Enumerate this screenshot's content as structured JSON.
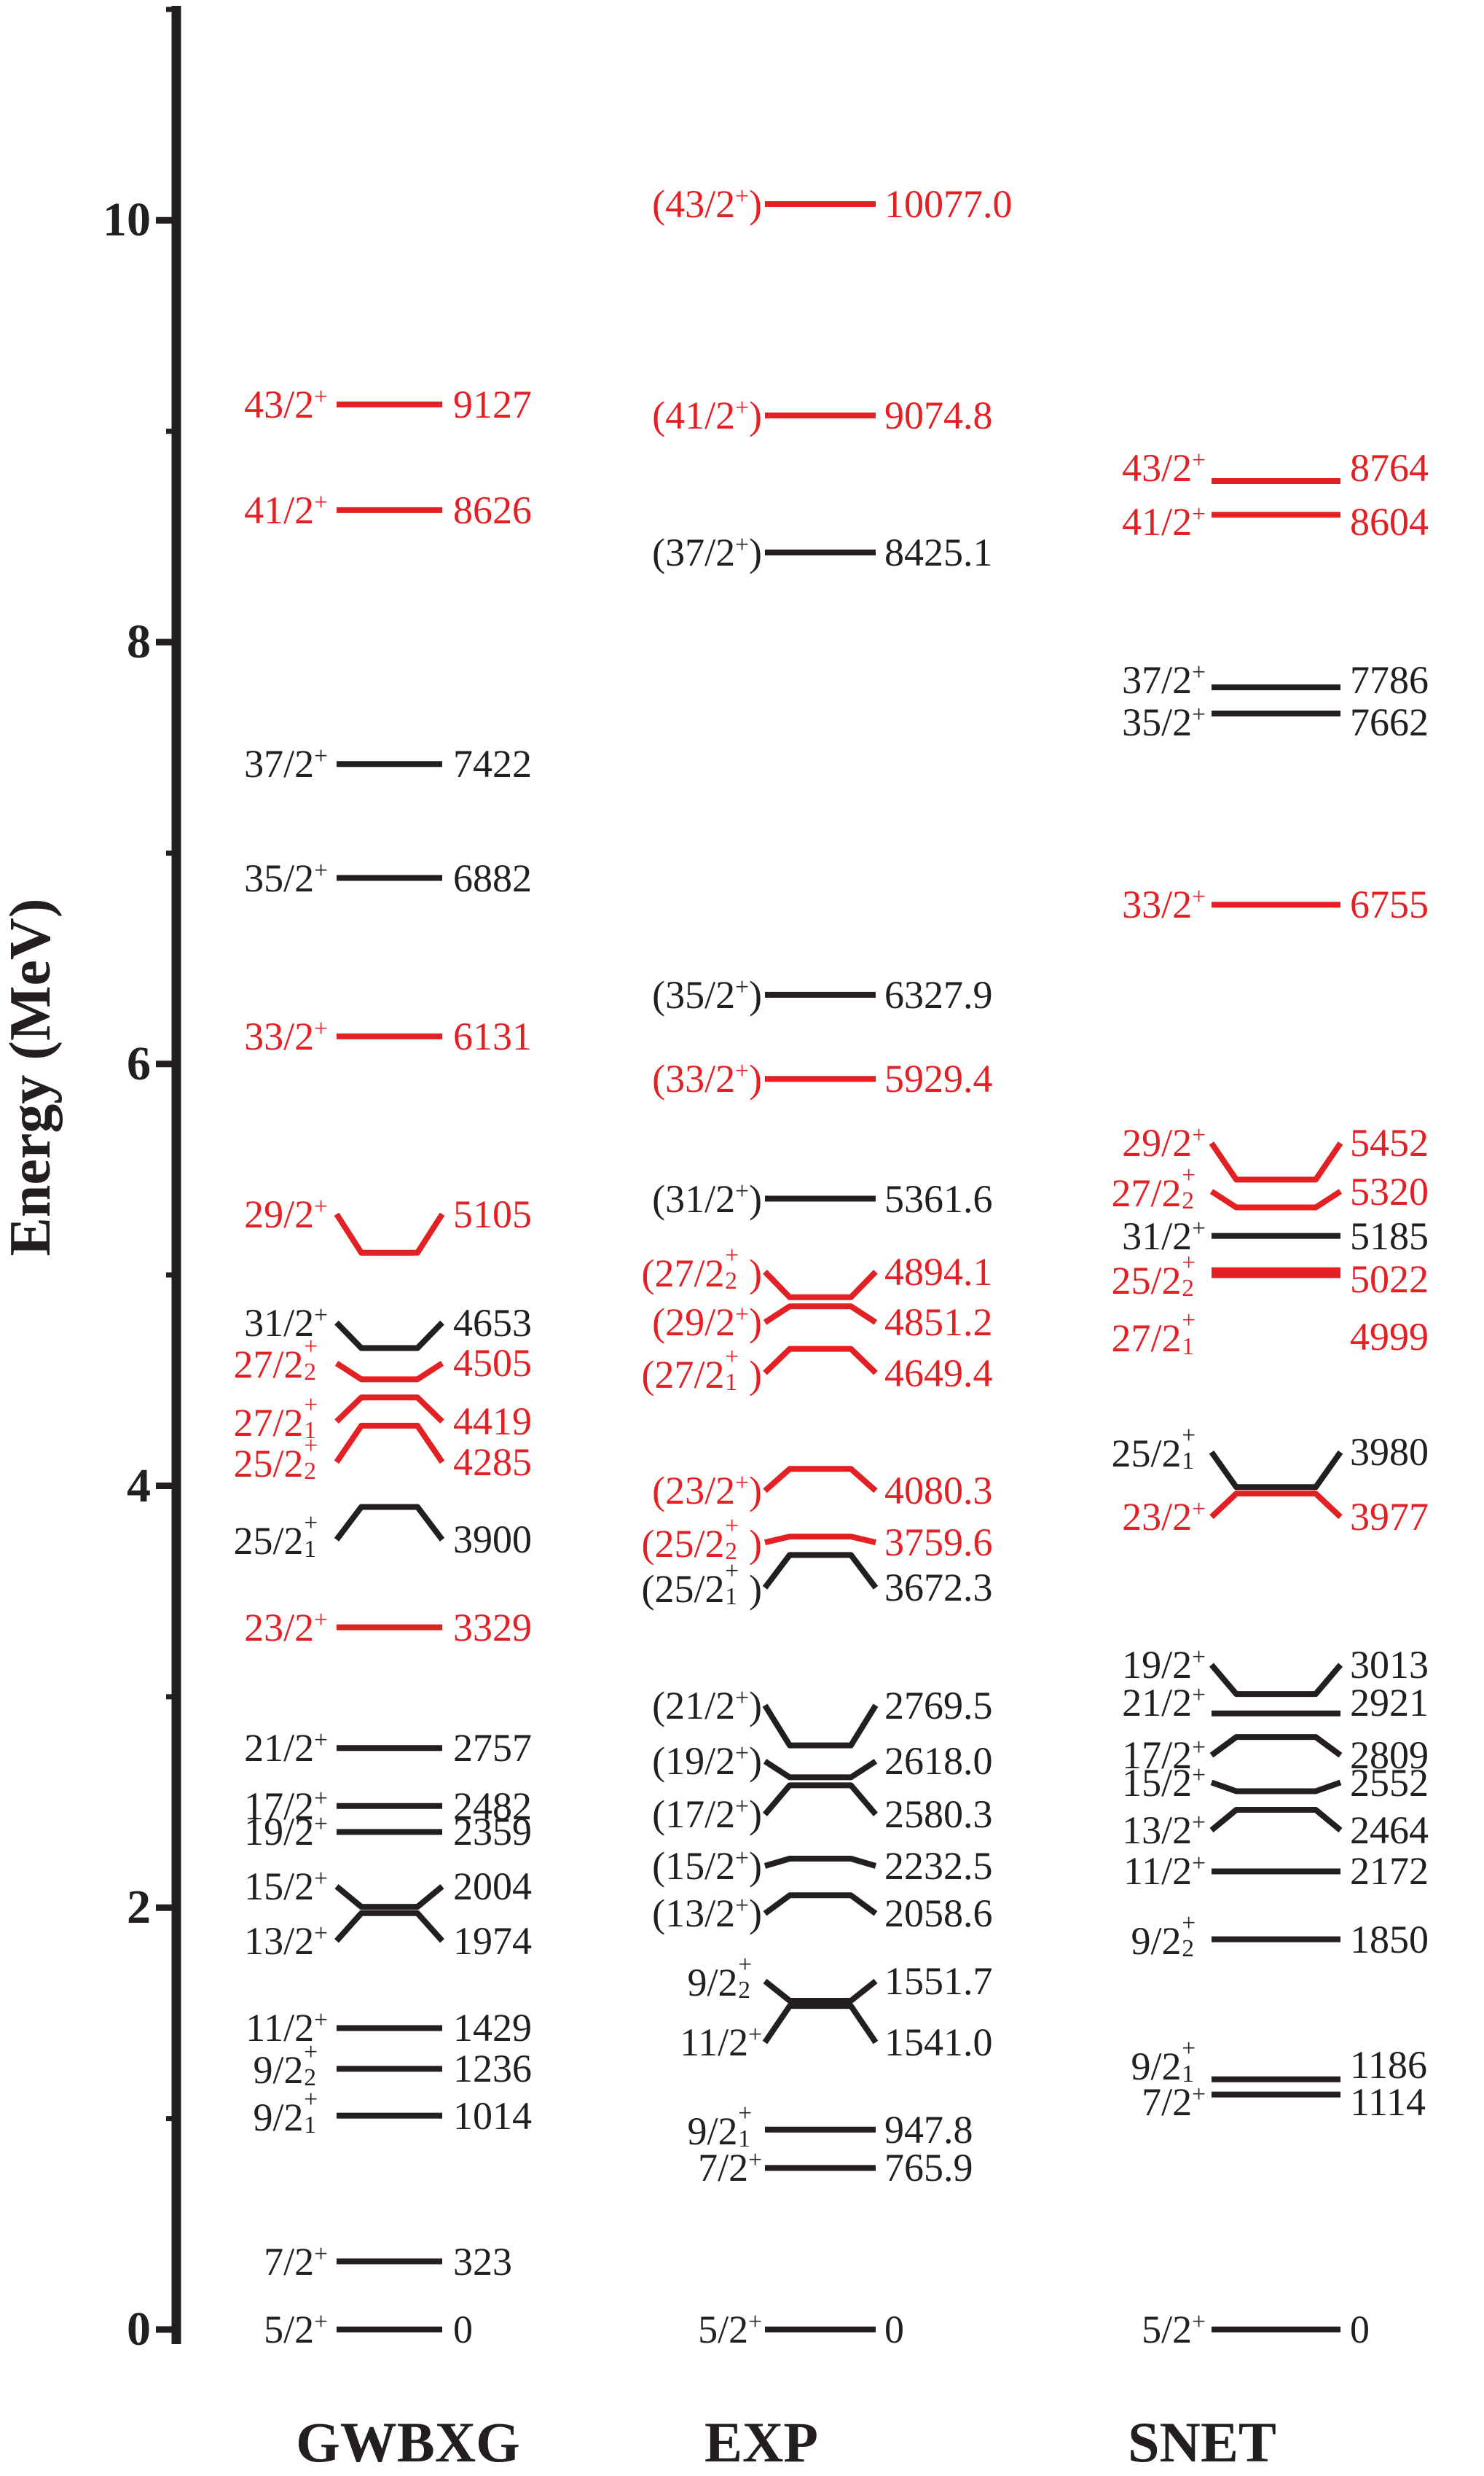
{
  "figure": {
    "background": "#ffffff",
    "colors": {
      "black": "#231f20",
      "red": "#e32124"
    }
  },
  "chart_data": {
    "type": "other",
    "subtype": "nuclear-energy-level-scheme",
    "title": "",
    "ylabel": "Energy (MeV)",
    "ylim": [
      0,
      11.3
    ],
    "yticks_major": [
      0,
      2,
      4,
      6,
      8,
      10
    ],
    "ytick_labels": [
      "0",
      "2",
      "4",
      "6",
      "8",
      "10"
    ],
    "yticks_minor": [
      1,
      3,
      5,
      7,
      9,
      11
    ],
    "grid": false,
    "energy_unit_of_level_labels": "keV",
    "columns": [
      {
        "name": "GWBXG",
        "levels": [
          {
            "spin": "5/2",
            "sup": "+",
            "paren": false,
            "energy_label": "0",
            "energy_kev": 0,
            "color": "black"
          },
          {
            "spin": "7/2",
            "sup": "+",
            "paren": false,
            "energy_label": "323",
            "energy_kev": 323,
            "color": "black"
          },
          {
            "spin": "9/2",
            "sup": "+",
            "sub": "1",
            "paren": false,
            "energy_label": "1014",
            "energy_kev": 1014,
            "color": "black"
          },
          {
            "spin": "9/2",
            "sup": "+",
            "sub": "2",
            "paren": false,
            "energy_label": "1236",
            "energy_kev": 1236,
            "color": "black"
          },
          {
            "spin": "11/2",
            "sup": "+",
            "paren": false,
            "energy_label": "1429",
            "energy_kev": 1429,
            "color": "black"
          },
          {
            "spin": "13/2",
            "sup": "+",
            "paren": false,
            "energy_label": "1974",
            "energy_kev": 1974,
            "color": "black",
            "off": 38,
            "kink": true
          },
          {
            "spin": "15/2",
            "sup": "+",
            "paren": false,
            "energy_label": "2004",
            "energy_kev": 2004,
            "color": "black",
            "off": -28,
            "kink": true
          },
          {
            "spin": "19/2",
            "sup": "+",
            "paren": false,
            "energy_label": "2359",
            "energy_kev": 2359,
            "color": "black"
          },
          {
            "spin": "17/2",
            "sup": "+",
            "paren": false,
            "energy_label": "2482",
            "energy_kev": 2482,
            "color": "black"
          },
          {
            "spin": "21/2",
            "sup": "+",
            "paren": false,
            "energy_label": "2757",
            "energy_kev": 2757,
            "color": "black"
          },
          {
            "spin": "23/2",
            "sup": "+",
            "paren": false,
            "energy_label": "3329",
            "energy_kev": 3329,
            "color": "red"
          },
          {
            "spin": "25/2",
            "sup": "+",
            "sub": "1",
            "paren": false,
            "energy_label": "3900",
            "energy_kev": 3900,
            "color": "black",
            "off": 45,
            "kink": true
          },
          {
            "spin": "25/2",
            "sup": "+",
            "sub": "2",
            "paren": false,
            "energy_label": "4285",
            "energy_kev": 4285,
            "color": "red",
            "off": 50,
            "kink": true
          },
          {
            "spin": "27/2",
            "sup": "+",
            "sub": "1",
            "paren": false,
            "energy_label": "4419",
            "energy_kev": 4419,
            "color": "red",
            "off": 33,
            "kink": true
          },
          {
            "spin": "27/2",
            "sup": "+",
            "sub": "2",
            "paren": false,
            "energy_label": "4505",
            "energy_kev": 4505,
            "color": "red",
            "off": -22,
            "kink": true
          },
          {
            "spin": "31/2",
            "sup": "+",
            "paren": false,
            "energy_label": "4653",
            "energy_kev": 4653,
            "color": "black",
            "off": -35,
            "kink": true
          },
          {
            "spin": "29/2",
            "sup": "+",
            "paren": false,
            "energy_label": "5105",
            "energy_kev": 5105,
            "color": "red",
            "off": -53,
            "kink": true
          },
          {
            "spin": "33/2",
            "sup": "+",
            "paren": false,
            "energy_label": "6131",
            "energy_kev": 6131,
            "color": "red"
          },
          {
            "spin": "35/2",
            "sup": "+",
            "paren": false,
            "energy_label": "6882",
            "energy_kev": 6882,
            "color": "black"
          },
          {
            "spin": "37/2",
            "sup": "+",
            "paren": false,
            "energy_label": "7422",
            "energy_kev": 7422,
            "color": "black"
          },
          {
            "spin": "41/2",
            "sup": "+",
            "paren": false,
            "energy_label": "8626",
            "energy_kev": 8626,
            "color": "red"
          },
          {
            "spin": "43/2",
            "sup": "+",
            "paren": false,
            "energy_label": "9127",
            "energy_kev": 9127,
            "color": "red"
          }
        ]
      },
      {
        "name": "EXP",
        "levels": [
          {
            "spin": "5/2",
            "sup": "+",
            "paren": false,
            "energy_label": "0",
            "energy_kev": 0,
            "color": "black"
          },
          {
            "spin": "7/2",
            "sup": "+",
            "paren": false,
            "energy_label": "765.9",
            "energy_kev": 765.9,
            "color": "black"
          },
          {
            "spin": "9/2",
            "sup": "+",
            "sub": "1",
            "paren": false,
            "energy_label": "947.8",
            "energy_kev": 947.8,
            "color": "black"
          },
          {
            "spin": "11/2",
            "sup": "+",
            "paren": false,
            "energy_label": "1541.0",
            "energy_kev": 1541.0,
            "color": "black",
            "off": 50,
            "kink": true,
            "dy": 2
          },
          {
            "spin": "9/2",
            "sup": "+",
            "sub": "2",
            "paren": false,
            "energy_label": "1551.7",
            "energy_kev": 1551.7,
            "color": "black",
            "off": -27,
            "kink": true,
            "dy": -2
          },
          {
            "spin": "13/2",
            "sup": "+",
            "paren": true,
            "energy_label": "2058.6",
            "energy_kev": 2058.6,
            "color": "black",
            "off": 25,
            "kink": true
          },
          {
            "spin": "15/2",
            "sup": "+",
            "paren": true,
            "energy_label": "2232.5",
            "energy_kev": 2232.5,
            "color": "black",
            "off": 10,
            "kink": true
          },
          {
            "spin": "17/2",
            "sup": "+",
            "paren": true,
            "energy_label": "2580.3",
            "energy_kev": 2580.3,
            "color": "black",
            "off": 40,
            "kink": true
          },
          {
            "spin": "19/2",
            "sup": "+",
            "paren": true,
            "energy_label": "2618.0",
            "energy_kev": 2618.0,
            "color": "black",
            "off": -22,
            "kink": true
          },
          {
            "spin": "21/2",
            "sup": "+",
            "paren": true,
            "energy_label": "2769.5",
            "energy_kev": 2769.5,
            "color": "black",
            "off": -55,
            "kink": true
          },
          {
            "spin": "25/2",
            "sup": "+",
            "sub": "1",
            "paren": true,
            "energy_label": "3672.3",
            "energy_kev": 3672.3,
            "color": "black",
            "off": 45,
            "kink": true
          },
          {
            "spin": "25/2",
            "sup": "+",
            "sub": "2",
            "paren": true,
            "energy_label": "3759.6",
            "energy_kev": 3759.6,
            "color": "red",
            "off": 8,
            "kink": true
          },
          {
            "spin": "23/2",
            "sup": "+",
            "paren": true,
            "energy_label": "4080.3",
            "energy_kev": 4080.3,
            "color": "red",
            "off": 30,
            "kink": true
          },
          {
            "spin": "27/2",
            "sup": "+",
            "sub": "1",
            "paren": true,
            "energy_label": "4649.4",
            "energy_kev": 4649.4,
            "color": "red",
            "off": 33,
            "kink": true
          },
          {
            "spin": "29/2",
            "sup": "+",
            "paren": true,
            "energy_label": "4851.2",
            "energy_kev": 4851.2,
            "color": "red",
            "off": 22,
            "kink": true
          },
          {
            "spin": "27/2",
            "sup": "+",
            "sub": "2",
            "paren": true,
            "energy_label": "4894.1",
            "energy_kev": 4894.1,
            "color": "red",
            "off": -35,
            "kink": true
          },
          {
            "spin": "31/2",
            "sup": "+",
            "paren": true,
            "energy_label": "5361.6",
            "energy_kev": 5361.6,
            "color": "black"
          },
          {
            "spin": "33/2",
            "sup": "+",
            "paren": true,
            "energy_label": "5929.4",
            "energy_kev": 5929.4,
            "color": "red"
          },
          {
            "spin": "35/2",
            "sup": "+",
            "paren": true,
            "energy_label": "6327.9",
            "energy_kev": 6327.9,
            "color": "black"
          },
          {
            "spin": "37/2",
            "sup": "+",
            "paren": true,
            "energy_label": "8425.1",
            "energy_kev": 8425.1,
            "color": "black"
          },
          {
            "spin": "41/2",
            "sup": "+",
            "paren": true,
            "energy_label": "9074.8",
            "energy_kev": 9074.8,
            "color": "red"
          },
          {
            "spin": "43/2",
            "sup": "+",
            "paren": true,
            "energy_label": "10077.0",
            "energy_kev": 10077.0,
            "color": "red"
          }
        ]
      },
      {
        "name": "SNET",
        "levels": [
          {
            "spin": "5/2",
            "sup": "+",
            "paren": false,
            "energy_label": "0",
            "energy_kev": 0,
            "color": "black"
          },
          {
            "spin": "7/2",
            "sup": "+",
            "paren": false,
            "energy_label": "1114",
            "energy_kev": 1114,
            "color": "black",
            "off": 10
          },
          {
            "spin": "9/2",
            "sup": "+",
            "sub": "1",
            "paren": false,
            "energy_label": "1186",
            "energy_kev": 1186,
            "color": "black",
            "off": -20
          },
          {
            "spin": "9/2",
            "sup": "+",
            "sub": "2",
            "paren": false,
            "energy_label": "1850",
            "energy_kev": 1850,
            "color": "black"
          },
          {
            "spin": "11/2",
            "sup": "+",
            "paren": false,
            "energy_label": "2172",
            "energy_kev": 2172,
            "color": "black"
          },
          {
            "spin": "13/2",
            "sup": "+",
            "paren": false,
            "energy_label": "2464",
            "energy_kev": 2464,
            "color": "black",
            "off": 28,
            "kink": true
          },
          {
            "spin": "15/2",
            "sup": "+",
            "paren": false,
            "energy_label": "2552",
            "energy_kev": 2552,
            "color": "black",
            "off": -12,
            "kink": true
          },
          {
            "spin": "17/2",
            "sup": "+",
            "paren": false,
            "energy_label": "2809",
            "energy_kev": 2809,
            "color": "black",
            "off": 25,
            "kink": true
          },
          {
            "spin": "21/2",
            "sup": "+",
            "paren": false,
            "energy_label": "2921",
            "energy_kev": 2921,
            "color": "black",
            "off": -15
          },
          {
            "spin": "19/2",
            "sup": "+",
            "paren": false,
            "energy_label": "3013",
            "energy_kev": 3013,
            "color": "black",
            "off": -40,
            "kink": true
          },
          {
            "spin": "23/2",
            "sup": "+",
            "paren": false,
            "energy_label": "3977",
            "energy_kev": 3977,
            "color": "red",
            "off": 32,
            "kink": true,
            "dy": 4
          },
          {
            "spin": "25/2",
            "sup": "+",
            "sub": "1",
            "paren": false,
            "energy_label": "3980",
            "energy_kev": 3980,
            "color": "black",
            "off": -48,
            "kink": true,
            "dy": -4
          },
          {
            "spin": "27/2",
            "sup": "+",
            "sub": "1",
            "paren": false,
            "energy_label": "4999",
            "energy_kev": 4999,
            "color": "red",
            "off": 85
          },
          {
            "spin": "25/2",
            "sup": "+",
            "sub": "2",
            "paren": false,
            "energy_label": "5022",
            "energy_kev": 5022,
            "color": "red",
            "off": 12
          },
          {
            "spin": "31/2",
            "sup": "+",
            "paren": false,
            "energy_label": "5185",
            "energy_kev": 5185,
            "color": "black"
          },
          {
            "spin": "27/2",
            "sup": "+",
            "sub": "2",
            "paren": false,
            "energy_label": "5320",
            "energy_kev": 5320,
            "color": "red",
            "off": -22,
            "kink": true
          },
          {
            "spin": "29/2",
            "sup": "+",
            "paren": false,
            "energy_label": "5452",
            "energy_kev": 5452,
            "color": "red",
            "off": -50,
            "kink": true
          },
          {
            "spin": "33/2",
            "sup": "+",
            "paren": false,
            "energy_label": "6755",
            "energy_kev": 6755,
            "color": "red"
          },
          {
            "spin": "35/2",
            "sup": "+",
            "paren": false,
            "energy_label": "7662",
            "energy_kev": 7662,
            "color": "black",
            "off": 12
          },
          {
            "spin": "37/2",
            "sup": "+",
            "paren": false,
            "energy_label": "7786",
            "energy_kev": 7786,
            "color": "black",
            "off": -10
          },
          {
            "spin": "41/2",
            "sup": "+",
            "paren": false,
            "energy_label": "8604",
            "energy_kev": 8604,
            "color": "red",
            "off": 10
          },
          {
            "spin": "43/2",
            "sup": "+",
            "paren": false,
            "energy_label": "8764",
            "energy_kev": 8764,
            "color": "red",
            "off": -18
          }
        ]
      }
    ]
  }
}
